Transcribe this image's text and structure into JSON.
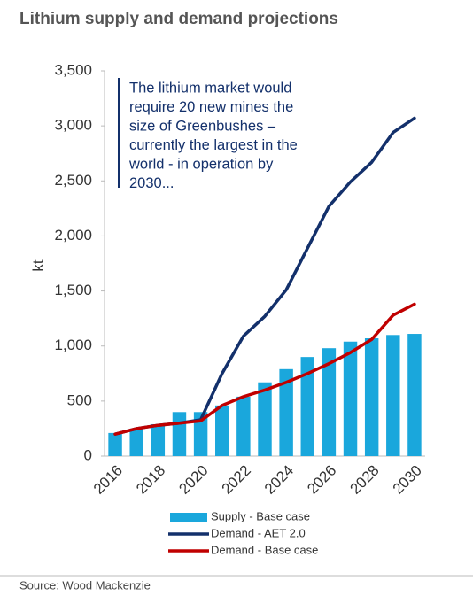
{
  "chart_data": {
    "type": "bar-line",
    "title": "Lithium supply and demand projections",
    "y_label": "kt",
    "annotation": [
      "The lithium market would",
      "require 20 new mines the",
      "size of Greenbushes  –",
      "currently the largest in the",
      "world - in operation by",
      "2030..."
    ],
    "source": "Source: Wood Mackenzie",
    "categories": [
      "2016",
      null,
      "2018",
      null,
      "2020",
      null,
      "2022",
      null,
      "2024",
      null,
      "2026",
      null,
      "2028",
      null,
      "2030"
    ],
    "series": [
      {
        "name": "Supply - Base case",
        "kind": "bar",
        "color": "#1aa7dc",
        "values": [
          210,
          250,
          290,
          400,
          400,
          460,
          540,
          670,
          790,
          900,
          980,
          1040,
          1070,
          1100,
          1110
        ]
      },
      {
        "name": "Demand - AET 2.0",
        "kind": "line",
        "color": "#13306b",
        "values": [
          200,
          250,
          280,
          300,
          330,
          750,
          1090,
          1270,
          1510,
          1890,
          2270,
          2490,
          2670,
          2940,
          3070
        ]
      },
      {
        "name": "Demand - Base case",
        "kind": "line",
        "color": "#c00000",
        "values": [
          200,
          250,
          280,
          300,
          320,
          460,
          540,
          600,
          670,
          750,
          840,
          940,
          1060,
          1280,
          1380
        ]
      }
    ],
    "ylim": [
      0,
      3500
    ],
    "yticks": [
      0,
      500,
      {
        "value": 1000,
        "label": "1,000"
      },
      {
        "value": 1500,
        "label": "1,500"
      },
      {
        "value": 2000,
        "label": "2,000"
      },
      {
        "value": 2500,
        "label": "2,500"
      },
      {
        "value": 3000,
        "label": "3,000"
      },
      {
        "value": 3500,
        "label": "3,500"
      }
    ],
    "grid": false
  }
}
